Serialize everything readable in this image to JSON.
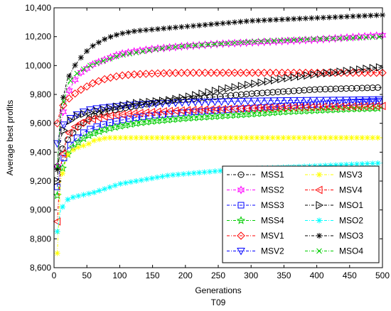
{
  "chart_data": {
    "type": "line",
    "title": "",
    "subtitle": "T09",
    "xlabel": "Generations",
    "ylabel": "Average best profits",
    "xlim": [
      0,
      500
    ],
    "ylim": [
      8600,
      10400
    ],
    "xticks": [
      "0",
      "50",
      "100",
      "150",
      "200",
      "250",
      "300",
      "350",
      "400",
      "450",
      "500"
    ],
    "yticks": [
      "8,600",
      "8,800",
      "9,000",
      "9,200",
      "9,400",
      "9,600",
      "9,800",
      "10,000",
      "10,200",
      "10,400"
    ],
    "grid": false,
    "legend_position": "bottom-right",
    "x": [
      5,
      10,
      20,
      30,
      40,
      50,
      60,
      80,
      100,
      125,
      150,
      175,
      200,
      250,
      300,
      350,
      400,
      450,
      500
    ],
    "series": [
      {
        "name": "MSS1",
        "color": "#000000",
        "marker": "circle",
        "values": [
          9300,
          9400,
          9480,
          9540,
          9590,
          9620,
          9650,
          9680,
          9700,
          9720,
          9740,
          9755,
          9765,
          9785,
          9805,
          9820,
          9835,
          9842,
          9848
        ]
      },
      {
        "name": "MSS2",
        "color": "#ff00ff",
        "marker": "hexagram",
        "values": [
          9300,
          9600,
          9800,
          9890,
          9950,
          9980,
          10010,
          10045,
          10080,
          10100,
          10115,
          10125,
          10135,
          10150,
          10160,
          10170,
          10180,
          10195,
          10210
        ]
      },
      {
        "name": "MSS3",
        "color": "#0000ff",
        "marker": "square",
        "values": [
          9160,
          9300,
          9420,
          9480,
          9520,
          9550,
          9570,
          9600,
          9620,
          9640,
          9655,
          9665,
          9675,
          9690,
          9705,
          9720,
          9730,
          9745,
          9755
        ]
      },
      {
        "name": "MSS4",
        "color": "#00cc00",
        "marker": "star",
        "values": [
          9100,
          9250,
          9380,
          9440,
          9480,
          9510,
          9530,
          9560,
          9580,
          9600,
          9615,
          9625,
          9635,
          9650,
          9665,
          9680,
          9690,
          9700,
          9705
        ]
      },
      {
        "name": "MSV1",
        "color": "#ff0000",
        "marker": "diamond",
        "values": [
          9600,
          9700,
          9760,
          9800,
          9830,
          9855,
          9880,
          9910,
          9930,
          9940,
          9945,
          9948,
          9950,
          9950,
          9950,
          9950,
          9950,
          9950,
          9950
        ]
      },
      {
        "name": "MSV2",
        "color": "#0000ff",
        "marker": "triangle-down",
        "values": [
          9460,
          9560,
          9620,
          9650,
          9670,
          9690,
          9700,
          9710,
          9720,
          9730,
          9735,
          9740,
          9745,
          9750,
          9755,
          9758,
          9760,
          9762,
          9765
        ]
      },
      {
        "name": "MSV3",
        "color": "#ffff00",
        "marker": "asterisk",
        "values": [
          8700,
          9200,
          9380,
          9420,
          9440,
          9450,
          9480,
          9500,
          9500,
          9500,
          9500,
          9500,
          9500,
          9500,
          9500,
          9500,
          9500,
          9500,
          9500
        ]
      },
      {
        "name": "MSV4",
        "color": "#ff0000",
        "marker": "triangle-left",
        "values": [
          8920,
          9300,
          9520,
          9570,
          9600,
          9620,
          9630,
          9650,
          9660,
          9670,
          9678,
          9685,
          9690,
          9698,
          9705,
          9710,
          9713,
          9716,
          9720
        ]
      },
      {
        "name": "MSO1",
        "color": "#000000",
        "marker": "triangle-right",
        "values": [
          9200,
          9500,
          9600,
          9640,
          9660,
          9670,
          9680,
          9700,
          9720,
          9740,
          9750,
          9760,
          9780,
          9830,
          9870,
          9910,
          9940,
          9965,
          9990
        ]
      },
      {
        "name": "MSO2",
        "color": "#00ffff",
        "marker": "asterisk",
        "values": [
          8850,
          9000,
          9070,
          9090,
          9100,
          9110,
          9120,
          9150,
          9180,
          9200,
          9220,
          9240,
          9250,
          9270,
          9285,
          9295,
          9305,
          9315,
          9325
        ]
      },
      {
        "name": "MSO3",
        "color": "#000000",
        "marker": "asterisk",
        "values": [
          9280,
          9700,
          9900,
          9990,
          10050,
          10100,
          10140,
          10190,
          10220,
          10240,
          10250,
          10260,
          10270,
          10290,
          10310,
          10320,
          10330,
          10340,
          10350
        ]
      },
      {
        "name": "MSO4",
        "color": "#00cc00",
        "marker": "x",
        "values": [
          9300,
          9640,
          9860,
          9930,
          9960,
          9990,
          10010,
          10040,
          10070,
          10090,
          10110,
          10125,
          10135,
          10150,
          10165,
          10175,
          10185,
          10190,
          10200
        ]
      }
    ]
  }
}
